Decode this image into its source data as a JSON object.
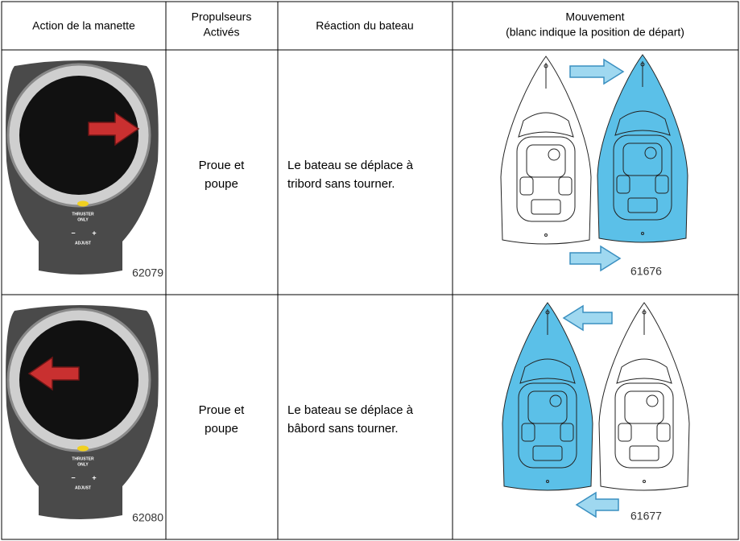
{
  "table": {
    "header": [
      [
        "Action de la manette"
      ],
      [
        "Propulseurs",
        "Activés"
      ],
      [
        "Réaction du bateau"
      ],
      [
        "Mouvement",
        "(blanc indique la position de départ)"
      ]
    ],
    "rows": [
      {
        "joystick": {
          "labels": [
            "THRUSTER",
            "ONLY",
            "−",
            "+",
            "ADJUST"
          ],
          "figure": "62079"
        },
        "thrusters": [
          "Proue et",
          "poupe"
        ],
        "reaction": [
          "Le bateau se déplace à",
          "tribord sans tourner."
        ],
        "movement_figure": "61676"
      },
      {
        "joystick": {
          "labels": [
            "THRUSTER",
            "ONLY",
            "−",
            "+",
            "ADJUST"
          ],
          "figure": "62080"
        },
        "thrusters": [
          "Proue et",
          "poupe"
        ],
        "reaction": [
          "Le bateau se déplace à",
          "bâbord sans tourner."
        ],
        "movement_figure": "61677"
      }
    ]
  }
}
